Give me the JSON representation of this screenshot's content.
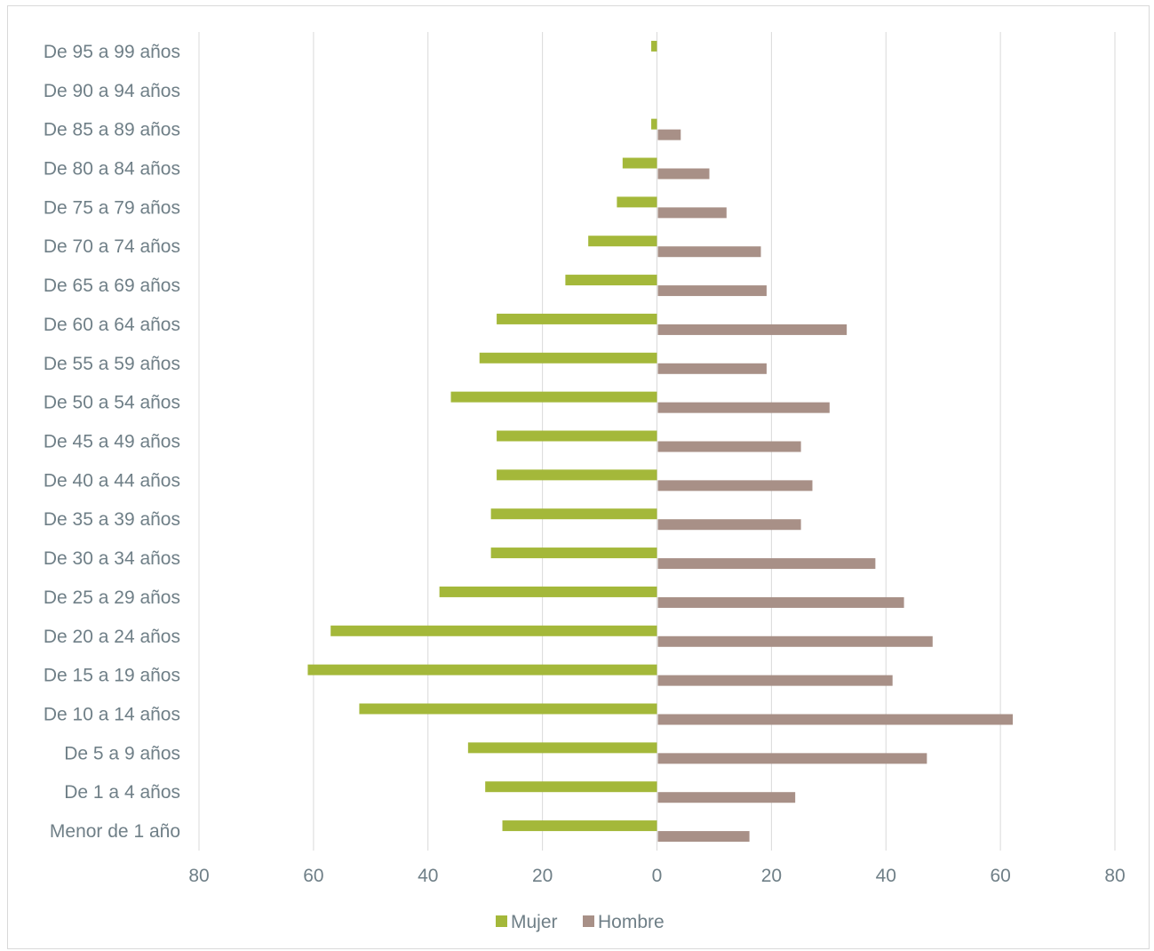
{
  "chart_data": {
    "type": "bar",
    "orientation": "horizontal",
    "subtype": "population-pyramid",
    "title": "",
    "xlabel": "",
    "ylabel": "",
    "categories": [
      "Menor de 1 año",
      "De 1 a 4 años",
      "De 5 a 9 años",
      "De 10 a 14 años",
      "De 15 a 19 años",
      "De 20 a 24 años",
      "De 25 a 29 años",
      "De 30 a 34 años",
      "De 35 a 39 años",
      "De 40 a 44 años",
      "De 45 a 49 años",
      "De 50 a 54 años",
      "De 55 a 59 años",
      "De 60 a 64 años",
      "De 65 a 69 años",
      "De 70 a 74 años",
      "De 75 a 79 años",
      "De 80 a 84 años",
      "De 85 a 89 años",
      "De 90 a 94 años",
      "De 95 a 99 años"
    ],
    "series": [
      {
        "name": "Mujer",
        "color": "#a4b83a",
        "side": "left",
        "values": [
          27,
          30,
          33,
          52,
          61,
          57,
          38,
          29,
          29,
          28,
          28,
          36,
          31,
          28,
          16,
          12,
          7,
          6,
          1,
          0,
          1
        ]
      },
      {
        "name": "Hombre",
        "color": "#a89087",
        "side": "right",
        "values": [
          16,
          24,
          47,
          62,
          41,
          48,
          43,
          38,
          25,
          27,
          25,
          30,
          19,
          33,
          19,
          18,
          12,
          9,
          4,
          0,
          0
        ]
      }
    ],
    "xlim": [
      -80,
      80
    ],
    "x_ticks": [
      "80",
      "60",
      "40",
      "20",
      "0",
      "20",
      "40",
      "60",
      "80"
    ],
    "grid": "vertical",
    "legend_position": "bottom"
  }
}
